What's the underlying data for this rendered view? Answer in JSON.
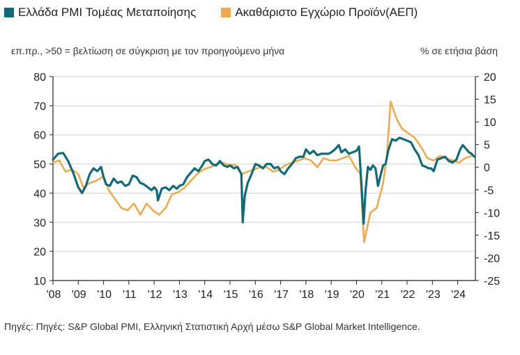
{
  "legend": {
    "pmi_label": "Ελλάδα PMI Τομέας Μεταποίησης",
    "gdp_label": "Ακαθάριστο Εγχώριο Προϊόν(ΑΕΠ)"
  },
  "subtitle_left": "επ.πρ., >50 = βελτίωση σε σύγκριση με τον προηγούμενο μήνα",
  "subtitle_right": "% σε ετήσια βάση",
  "source": "Πηγές: Πηγές: S&P Global PMI, Ελληνική Στατιστική Αρχή μέσω S&P Global Market Intelligence.",
  "colors": {
    "pmi": "#0f6b78",
    "gdp": "#f0a94b",
    "axis": "#222222"
  },
  "chart_data": {
    "type": "line",
    "title": "",
    "x_tick_labels": [
      "'08",
      "'09",
      "'10",
      "'11",
      "'12",
      "'13",
      "'14",
      "'15",
      "'16",
      "'17",
      "'18",
      "'19",
      "'20",
      "'21",
      "'22",
      "'23",
      "'24"
    ],
    "y_left": {
      "ylim": [
        10,
        80
      ],
      "ticks": [
        10,
        20,
        30,
        40,
        50,
        60,
        70,
        80
      ]
    },
    "y_right": {
      "ylim": [
        -25,
        20
      ],
      "ticks": [
        -25,
        -20,
        -15,
        -10,
        -5,
        0,
        5,
        10,
        15,
        20
      ]
    },
    "series": [
      {
        "name": "Ελλάδα PMI Τομέας Μεταποίησης",
        "axis": "left",
        "points": [
          [
            2008.0,
            51.5
          ],
          [
            2008.2,
            53.5
          ],
          [
            2008.4,
            53.8
          ],
          [
            2008.6,
            51.0
          ],
          [
            2008.8,
            47.0
          ],
          [
            2009.0,
            42.0
          ],
          [
            2009.15,
            40.0
          ],
          [
            2009.3,
            42.5
          ],
          [
            2009.45,
            46.5
          ],
          [
            2009.6,
            48.5
          ],
          [
            2009.75,
            47.5
          ],
          [
            2009.9,
            49.0
          ],
          [
            2010.0,
            45.5
          ],
          [
            2010.1,
            43.0
          ],
          [
            2010.25,
            42.5
          ],
          [
            2010.4,
            45.0
          ],
          [
            2010.55,
            43.5
          ],
          [
            2010.7,
            44.0
          ],
          [
            2010.85,
            42.5
          ],
          [
            2011.0,
            43.0
          ],
          [
            2011.15,
            46.0
          ],
          [
            2011.3,
            45.5
          ],
          [
            2011.45,
            43.5
          ],
          [
            2011.6,
            43.0
          ],
          [
            2011.75,
            42.0
          ],
          [
            2011.9,
            41.0
          ],
          [
            2012.0,
            42.0
          ],
          [
            2012.1,
            41.0
          ],
          [
            2012.15,
            37.5
          ],
          [
            2012.3,
            41.5
          ],
          [
            2012.45,
            42.0
          ],
          [
            2012.6,
            41.0
          ],
          [
            2012.75,
            42.5
          ],
          [
            2012.9,
            41.5
          ],
          [
            2013.0,
            42.5
          ],
          [
            2013.15,
            43.0
          ],
          [
            2013.3,
            45.5
          ],
          [
            2013.45,
            47.0
          ],
          [
            2013.6,
            48.5
          ],
          [
            2013.75,
            47.5
          ],
          [
            2013.9,
            49.5
          ],
          [
            2014.0,
            51.0
          ],
          [
            2014.15,
            51.5
          ],
          [
            2014.3,
            50.0
          ],
          [
            2014.45,
            49.5
          ],
          [
            2014.6,
            51.0
          ],
          [
            2014.75,
            49.5
          ],
          [
            2014.9,
            49.0
          ],
          [
            2015.0,
            49.5
          ],
          [
            2015.15,
            48.5
          ],
          [
            2015.3,
            49.0
          ],
          [
            2015.45,
            46.5
          ],
          [
            2015.5,
            30.0
          ],
          [
            2015.58,
            39.0
          ],
          [
            2015.7,
            43.5
          ],
          [
            2015.85,
            46.5
          ],
          [
            2016.0,
            50.0
          ],
          [
            2016.15,
            49.5
          ],
          [
            2016.3,
            48.5
          ],
          [
            2016.45,
            50.0
          ],
          [
            2016.6,
            50.0
          ],
          [
            2016.75,
            48.5
          ],
          [
            2016.9,
            49.0
          ],
          [
            2017.0,
            47.5
          ],
          [
            2017.15,
            46.5
          ],
          [
            2017.3,
            48.5
          ],
          [
            2017.45,
            50.0
          ],
          [
            2017.6,
            52.0
          ],
          [
            2017.75,
            52.5
          ],
          [
            2017.9,
            52.5
          ],
          [
            2018.0,
            55.0
          ],
          [
            2018.15,
            53.5
          ],
          [
            2018.3,
            54.5
          ],
          [
            2018.45,
            53.0
          ],
          [
            2018.6,
            53.5
          ],
          [
            2018.75,
            53.5
          ],
          [
            2018.9,
            53.5
          ],
          [
            2019.0,
            54.0
          ],
          [
            2019.15,
            55.0
          ],
          [
            2019.3,
            56.5
          ],
          [
            2019.4,
            54.0
          ],
          [
            2019.55,
            55.0
          ],
          [
            2019.7,
            53.5
          ],
          [
            2019.85,
            54.0
          ],
          [
            2020.0,
            54.5
          ],
          [
            2020.1,
            56.0
          ],
          [
            2020.2,
            42.5
          ],
          [
            2020.28,
            29.5
          ],
          [
            2020.36,
            41.0
          ],
          [
            2020.45,
            49.0
          ],
          [
            2020.55,
            48.0
          ],
          [
            2020.65,
            49.5
          ],
          [
            2020.75,
            48.5
          ],
          [
            2020.85,
            42.5
          ],
          [
            2020.95,
            46.0
          ],
          [
            2021.05,
            49.5
          ],
          [
            2021.15,
            50.0
          ],
          [
            2021.25,
            54.5
          ],
          [
            2021.4,
            58.5
          ],
          [
            2021.55,
            58.0
          ],
          [
            2021.7,
            59.0
          ],
          [
            2021.85,
            58.5
          ],
          [
            2022.0,
            58.0
          ],
          [
            2022.15,
            57.5
          ],
          [
            2022.3,
            55.0
          ],
          [
            2022.45,
            53.0
          ],
          [
            2022.6,
            49.5
          ],
          [
            2022.75,
            49.0
          ],
          [
            2022.85,
            48.5
          ],
          [
            2022.95,
            48.5
          ],
          [
            2023.05,
            47.5
          ],
          [
            2023.2,
            51.5
          ],
          [
            2023.35,
            52.0
          ],
          [
            2023.5,
            52.5
          ],
          [
            2023.65,
            51.0
          ],
          [
            2023.8,
            50.5
          ],
          [
            2023.95,
            51.5
          ],
          [
            2024.1,
            55.0
          ],
          [
            2024.2,
            56.5
          ],
          [
            2024.3,
            55.5
          ],
          [
            2024.45,
            54.0
          ],
          [
            2024.55,
            53.5
          ],
          [
            2024.65,
            52.5
          ]
        ]
      },
      {
        "name": "Ακαθάριστο Εγχώριο Προϊόν(ΑΕΠ)",
        "axis": "right",
        "points": [
          [
            2008.0,
            1.0
          ],
          [
            2008.25,
            1.5
          ],
          [
            2008.5,
            -1.0
          ],
          [
            2008.75,
            -0.5
          ],
          [
            2009.0,
            -1.5
          ],
          [
            2009.2,
            -4.5
          ],
          [
            2009.45,
            -3.5
          ],
          [
            2009.7,
            -3.0
          ],
          [
            2010.0,
            -2.0
          ],
          [
            2010.2,
            -5.0
          ],
          [
            2010.45,
            -7.0
          ],
          [
            2010.7,
            -9.0
          ],
          [
            2010.95,
            -9.5
          ],
          [
            2011.2,
            -8.0
          ],
          [
            2011.45,
            -10.5
          ],
          [
            2011.7,
            -8.0
          ],
          [
            2011.95,
            -9.5
          ],
          [
            2012.2,
            -10.5
          ],
          [
            2012.45,
            -9.0
          ],
          [
            2012.7,
            -6.0
          ],
          [
            2012.95,
            -5.5
          ],
          [
            2013.2,
            -4.5
          ],
          [
            2013.45,
            -3.0
          ],
          [
            2013.7,
            -1.5
          ],
          [
            2013.95,
            -0.5
          ],
          [
            2014.2,
            0.0
          ],
          [
            2014.45,
            0.5
          ],
          [
            2014.7,
            1.0
          ],
          [
            2014.95,
            0.5
          ],
          [
            2015.2,
            0.5
          ],
          [
            2015.45,
            -1.5
          ],
          [
            2015.7,
            -1.0
          ],
          [
            2015.95,
            -0.5
          ],
          [
            2016.2,
            0.0
          ],
          [
            2016.45,
            0.0
          ],
          [
            2016.7,
            -1.0
          ],
          [
            2016.95,
            -0.5
          ],
          [
            2017.2,
            0.5
          ],
          [
            2017.45,
            1.0
          ],
          [
            2017.7,
            1.5
          ],
          [
            2017.95,
            2.0
          ],
          [
            2018.2,
            1.5
          ],
          [
            2018.45,
            0.0
          ],
          [
            2018.7,
            2.0
          ],
          [
            2018.95,
            1.5
          ],
          [
            2019.2,
            1.5
          ],
          [
            2019.45,
            2.0
          ],
          [
            2019.7,
            2.5
          ],
          [
            2019.95,
            0.0
          ],
          [
            2020.15,
            -1.5
          ],
          [
            2020.3,
            -16.5
          ],
          [
            2020.55,
            -10.0
          ],
          [
            2020.8,
            -9.0
          ],
          [
            2021.05,
            -3.5
          ],
          [
            2021.2,
            2.5
          ],
          [
            2021.35,
            14.5
          ],
          [
            2021.6,
            10.5
          ],
          [
            2021.8,
            8.5
          ],
          [
            2022.05,
            7.5
          ],
          [
            2022.3,
            6.5
          ],
          [
            2022.55,
            4.5
          ],
          [
            2022.8,
            2.0
          ],
          [
            2023.05,
            1.5
          ],
          [
            2023.3,
            2.5
          ],
          [
            2023.55,
            2.0
          ],
          [
            2023.8,
            1.5
          ],
          [
            2024.05,
            1.0
          ],
          [
            2024.3,
            2.0
          ],
          [
            2024.55,
            2.5
          ]
        ]
      }
    ]
  }
}
